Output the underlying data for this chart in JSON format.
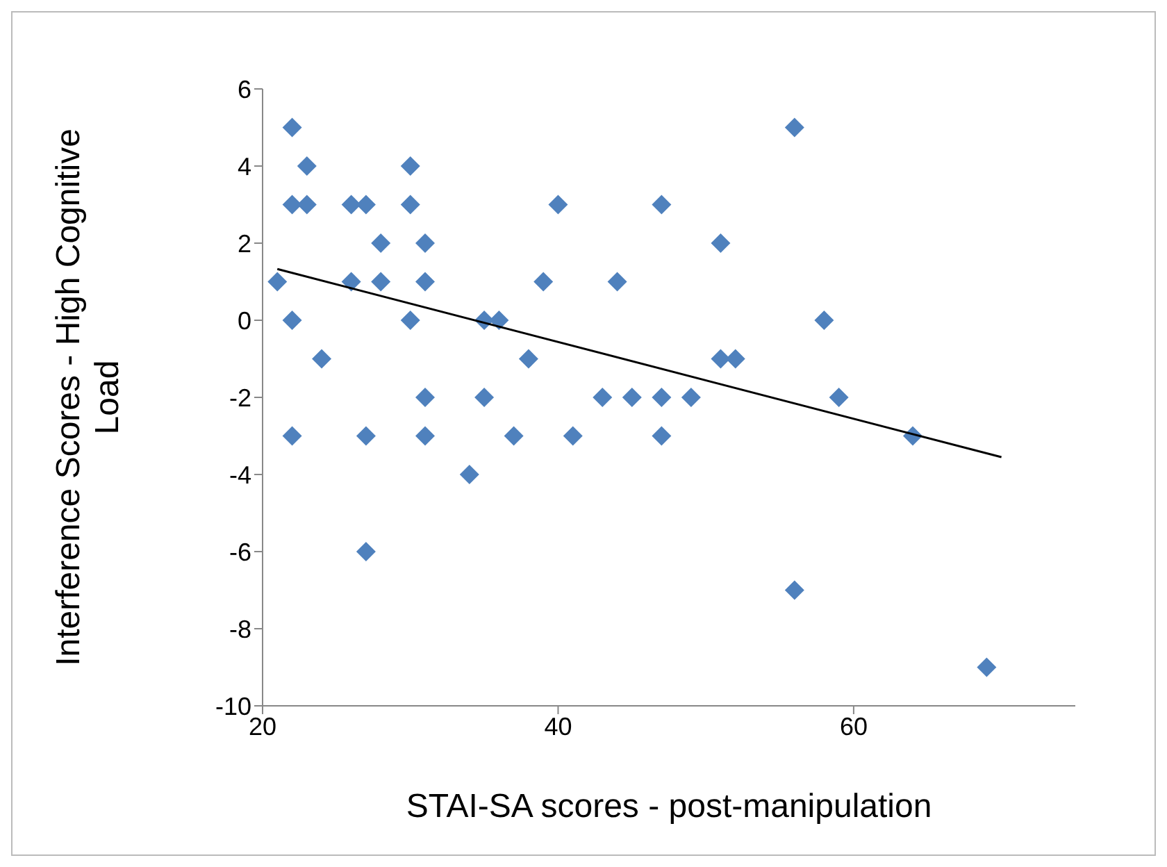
{
  "chart_data": {
    "type": "scatter",
    "xlabel": "STAI-SA scores - post-manipulation",
    "ylabel": "Interference Scores - High Cognitive Load",
    "xlim": [
      20,
      75
    ],
    "xticks": [
      20,
      40,
      60
    ],
    "ylim": [
      -10,
      6
    ],
    "yticks": [
      -10,
      -8,
      -6,
      -4,
      -2,
      0,
      2,
      4,
      6
    ],
    "marker": "diamond",
    "series": [
      {
        "color": "#4f81bd",
        "x": [
          21,
          22,
          22,
          22,
          22,
          23,
          23,
          24,
          26,
          26,
          27,
          27,
          27,
          28,
          28,
          30,
          30,
          30,
          31,
          31,
          31,
          31,
          34,
          35,
          35,
          36,
          37,
          38,
          39,
          40,
          41,
          43,
          44,
          45,
          47,
          47,
          47,
          49,
          51,
          51,
          52,
          56,
          56,
          58,
          59,
          64,
          69
        ],
        "values": [
          1,
          5,
          3,
          0,
          -3,
          4,
          3,
          -1,
          3,
          1,
          3,
          -3,
          -6,
          2,
          1,
          4,
          3,
          0,
          2,
          1,
          -2,
          -3,
          -4,
          0,
          -2,
          0,
          -3,
          -1,
          1,
          3,
          -3,
          -2,
          1,
          -2,
          3,
          -2,
          -3,
          -2,
          2,
          -1,
          -1,
          5,
          -7,
          0,
          -2,
          -3,
          -9
        ]
      },
      {
        "type": "line",
        "marker": "none",
        "color": "#000000",
        "x": [
          21,
          70
        ],
        "values": [
          1.33,
          -3.55
        ]
      }
    ]
  }
}
